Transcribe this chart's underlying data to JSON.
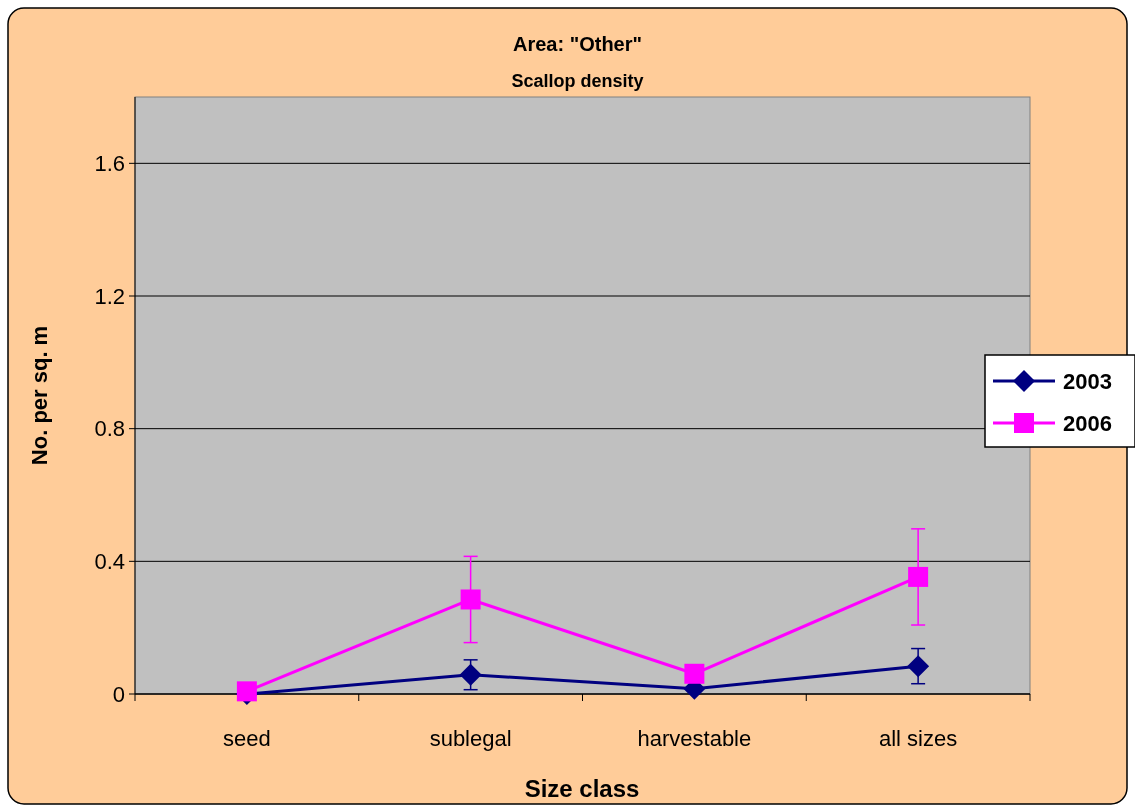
{
  "chart_data": {
    "type": "line",
    "title": "Area: \"Other\"",
    "subtitle": "Scallop density",
    "xlabel": "Size class",
    "ylabel": "No. per sq. m",
    "categories": [
      "seed",
      "sublegal",
      "harvestable",
      "all sizes"
    ],
    "series": [
      {
        "name": "2003",
        "color": "#000080",
        "values": [
          0,
          0.058,
          0.016,
          0.084
        ],
        "errors": [
          null,
          0.045,
          null,
          0.053
        ],
        "marker": "diamond"
      },
      {
        "name": "2006",
        "color": "#ff00ff",
        "values": [
          0.008,
          0.285,
          0.061,
          0.353
        ],
        "errors": [
          null,
          0.13,
          null,
          0.145
        ],
        "marker": "square"
      }
    ],
    "ylim": [
      0,
      1.8
    ],
    "yticks": [
      0,
      0.4,
      0.8,
      1.2,
      1.6
    ],
    "grid": "y",
    "legend": "right",
    "line_style": "solid"
  }
}
